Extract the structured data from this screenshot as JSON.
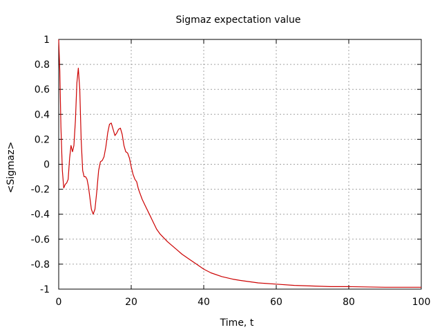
{
  "chart_data": {
    "type": "line",
    "title": "Sigmaz expectation value",
    "xlabel": "Time, t",
    "ylabel": "<Sigmaz>",
    "xlim": [
      0,
      100
    ],
    "ylim": [
      -1,
      1
    ],
    "grid": true,
    "xticks": [
      0,
      20,
      40,
      60,
      80,
      100
    ],
    "yticks": [
      1,
      0.8,
      0.6,
      0.4,
      0.2,
      0,
      -0.2,
      -0.4,
      -0.6,
      -0.8,
      -1
    ],
    "xtick_labels": [
      "0",
      "20",
      "40",
      "60",
      "80",
      "100"
    ],
    "ytick_labels": [
      "1",
      "0.8",
      "0.6",
      "0.4",
      "0.2",
      "0",
      "-0.2",
      "-0.4",
      "-0.6",
      "-0.8",
      "-1"
    ],
    "series": [
      {
        "color": "#cc0000",
        "x": [
          0,
          0.3,
          0.6,
          1.0,
          1.4,
          1.8,
          2.2,
          2.6,
          3.0,
          3.4,
          3.8,
          4.2,
          4.6,
          5.0,
          5.4,
          5.8,
          6.2,
          6.6,
          7.0,
          7.4,
          7.8,
          8.2,
          8.6,
          9.0,
          9.5,
          10.0,
          10.5,
          11.0,
          11.5,
          12.0,
          12.5,
          13.0,
          13.5,
          14.0,
          14.5,
          15.0,
          15.5,
          16.0,
          16.5,
          17.0,
          17.5,
          18.0,
          18.5,
          19.0,
          19.5,
          20.0,
          20.5,
          21.0,
          21.5,
          22.0,
          23.0,
          24.0,
          25.0,
          26.0,
          27.0,
          28.0,
          30.0,
          32.0,
          34.0,
          36.0,
          38.0,
          40.0,
          42.0,
          45.0,
          48.0,
          50.0,
          55.0,
          60.0,
          65.0,
          70.0,
          75.0,
          80.0,
          90.0,
          100.0
        ],
        "y": [
          1.0,
          0.75,
          0.3,
          -0.05,
          -0.19,
          -0.16,
          -0.15,
          -0.12,
          0.05,
          0.15,
          0.1,
          0.15,
          0.35,
          0.65,
          0.77,
          0.6,
          0.2,
          -0.05,
          -0.1,
          -0.1,
          -0.12,
          -0.18,
          -0.27,
          -0.36,
          -0.4,
          -0.36,
          -0.22,
          -0.05,
          0.02,
          0.03,
          0.06,
          0.14,
          0.25,
          0.32,
          0.33,
          0.28,
          0.23,
          0.25,
          0.28,
          0.29,
          0.24,
          0.15,
          0.1,
          0.09,
          0.05,
          -0.02,
          -0.08,
          -0.12,
          -0.14,
          -0.2,
          -0.28,
          -0.34,
          -0.4,
          -0.46,
          -0.52,
          -0.56,
          -0.62,
          -0.67,
          -0.72,
          -0.76,
          -0.8,
          -0.84,
          -0.87,
          -0.9,
          -0.92,
          -0.93,
          -0.95,
          -0.96,
          -0.97,
          -0.975,
          -0.98,
          -0.98,
          -0.985,
          -0.985
        ]
      }
    ]
  }
}
